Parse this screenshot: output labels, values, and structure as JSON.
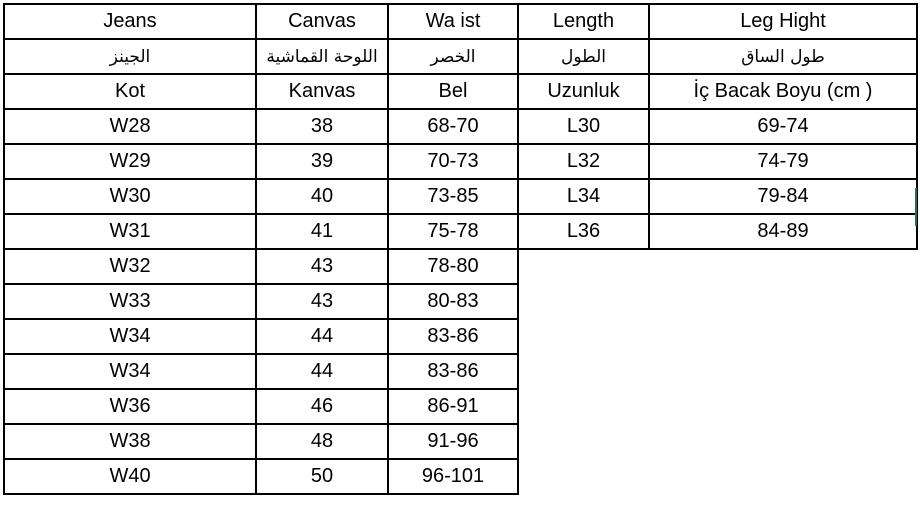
{
  "header_rows": [
    [
      "Jeans",
      "Canvas",
      "Wa ist",
      "Length",
      "Leg Hight"
    ],
    [
      "الجينز",
      "اللوحة القماشية",
      "الخصر",
      "الطول",
      "طول الساق"
    ],
    [
      "Kot",
      "Kanvas",
      "Bel",
      "Uzunluk",
      "İç Bacak Boyu (cm )"
    ]
  ],
  "rows": [
    [
      "W28",
      "38",
      "68-70",
      "L30",
      "69-74"
    ],
    [
      "W29",
      "39",
      "70-73",
      "L32",
      "74-79"
    ],
    [
      "W30",
      "40",
      "73-85",
      "L34",
      "79-84"
    ],
    [
      "W31",
      "41",
      "75-78",
      "L36",
      "84-89"
    ],
    [
      "W32",
      "43",
      "78-80"
    ],
    [
      "W33",
      "43",
      "80-83"
    ],
    [
      "W34",
      "44",
      "83-86"
    ],
    [
      "W34",
      "44",
      "83-86"
    ],
    [
      "W36",
      "46",
      "86-91"
    ],
    [
      "W38",
      "48",
      "91-96"
    ],
    [
      "W40",
      "50",
      "96-101"
    ]
  ],
  "colors": {
    "border": "#000000",
    "selection": "#217346"
  }
}
